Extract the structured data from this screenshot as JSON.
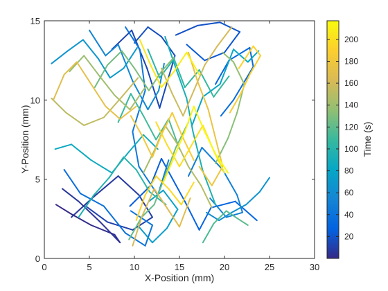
{
  "chart_data": {
    "type": "line",
    "xlabel": "X-Position (mm)",
    "ylabel": "Y-Position (mm)",
    "xlim": [
      0,
      30
    ],
    "ylim": [
      0,
      15
    ],
    "xticks": [
      0,
      5,
      10,
      15,
      20,
      25,
      30
    ],
    "yticks": [
      0,
      5,
      10,
      15
    ],
    "xtick_labels": [
      "0",
      "5",
      "10",
      "15",
      "20",
      "25",
      "30"
    ],
    "ytick_labels": [
      "0",
      "5",
      "10",
      "15"
    ],
    "grid": false,
    "colorbar": {
      "label": "Time (s)",
      "range": [
        0,
        217
      ],
      "ticks": [
        20,
        40,
        60,
        80,
        100,
        120,
        140,
        160,
        180,
        200
      ],
      "tick_labels": [
        "20",
        "40",
        "60",
        "80",
        "100",
        "120",
        "140",
        "160",
        "180",
        "200"
      ],
      "colormap": "parula",
      "colors": [
        "#352a87",
        "#0363e1",
        "#1485d4",
        "#06a7c6",
        "#38b99e",
        "#92bf73",
        "#d9ba56",
        "#fcce2e",
        "#f9fb0e"
      ]
    },
    "series": [
      {
        "time": [
          0,
          6
        ],
        "x": [
          1.3,
          3.0,
          5.2,
          7.8,
          8.4,
          6.2,
          3.8,
          2.0
        ],
        "y": [
          3.4,
          2.8,
          2.1,
          1.5,
          1.0,
          2.3,
          3.6,
          4.4
        ]
      },
      {
        "time": [
          6,
          12
        ],
        "x": [
          3.0,
          5.5,
          8.2,
          10.5,
          12.0,
          9.8,
          7.0,
          4.6
        ],
        "y": [
          2.6,
          3.9,
          5.2,
          4.0,
          2.6,
          1.8,
          2.3,
          3.3
        ]
      },
      {
        "time": [
          12,
          18
        ],
        "x": [
          7.5,
          9.7,
          11.4,
          12.8,
          14.5,
          13.0,
          11.5,
          10.0
        ],
        "y": [
          13.2,
          14.4,
          12.0,
          9.5,
          12.8,
          14.0,
          14.6,
          13.6
        ]
      },
      {
        "time": [
          18,
          24
        ],
        "x": [
          14.6,
          17.0,
          19.5,
          21.7,
          20.0,
          17.8,
          15.8
        ],
        "y": [
          14.1,
          14.7,
          14.9,
          14.3,
          13.0,
          12.5,
          13.5
        ]
      },
      {
        "time": [
          24,
          30
        ],
        "x": [
          9.5,
          11.8,
          13.0,
          15.6,
          17.2,
          18.5,
          21.2,
          23.6
        ],
        "y": [
          3.3,
          4.6,
          6.3,
          3.6,
          1.8,
          3.2,
          3.6,
          2.4
        ]
      },
      {
        "time": [
          30,
          36
        ],
        "x": [
          19.0,
          20.5,
          22.8,
          23.2,
          21.0,
          19.6
        ],
        "y": [
          11.0,
          12.5,
          13.3,
          12.1,
          10.0,
          9.0
        ]
      },
      {
        "time": [
          36,
          42
        ],
        "x": [
          2.2,
          4.0,
          6.6,
          9.0,
          11.2,
          12.0,
          9.6
        ],
        "y": [
          5.6,
          4.1,
          3.3,
          1.6,
          0.8,
          2.1,
          3.0
        ]
      },
      {
        "time": [
          42,
          48
        ],
        "x": [
          9.0,
          10.6,
          11.2,
          9.8,
          10.5,
          12.6,
          13.8
        ],
        "y": [
          14.6,
          13.2,
          10.6,
          8.0,
          5.8,
          4.0,
          6.2
        ]
      },
      {
        "time": [
          48,
          54
        ],
        "x": [
          16.0,
          17.5,
          19.8,
          21.4,
          22.0,
          20.2,
          18.4
        ],
        "y": [
          5.2,
          7.0,
          5.6,
          4.0,
          2.9,
          2.6,
          3.8
        ]
      },
      {
        "time": [
          54,
          60
        ],
        "x": [
          5.0,
          6.8,
          8.2,
          9.8,
          11.5,
          12.7,
          13.3
        ],
        "y": [
          14.4,
          12.8,
          13.5,
          11.2,
          9.4,
          10.6,
          12.3
        ]
      },
      {
        "time": [
          60,
          66
        ],
        "x": [
          18.0,
          19.4,
          20.8,
          22.4,
          23.9,
          25.0
        ],
        "y": [
          2.9,
          2.4,
          2.9,
          3.4,
          4.2,
          5.1
        ]
      },
      {
        "time": [
          66,
          72
        ],
        "x": [
          0.8,
          2.6,
          4.3,
          6.0,
          7.3,
          8.8,
          10.3
        ],
        "y": [
          12.3,
          13.1,
          13.8,
          12.6,
          11.4,
          12.0,
          13.3
        ]
      },
      {
        "time": [
          72,
          78
        ],
        "x": [
          10.5,
          12.0,
          13.6,
          14.8,
          13.2,
          11.6
        ],
        "y": [
          2.0,
          1.0,
          1.9,
          3.1,
          4.3,
          3.6
        ]
      },
      {
        "time": [
          78,
          84
        ],
        "x": [
          16.4,
          17.6,
          19.5,
          21.0,
          22.6,
          23.8
        ],
        "y": [
          8.4,
          10.2,
          11.0,
          13.2,
          12.4,
          13.1
        ]
      },
      {
        "time": [
          84,
          90
        ],
        "x": [
          1.2,
          3.0,
          5.2,
          7.5,
          9.2,
          11.0,
          12.6
        ],
        "y": [
          6.9,
          7.2,
          6.2,
          5.4,
          6.6,
          7.8,
          6.9
        ]
      },
      {
        "time": [
          90,
          96
        ],
        "x": [
          13.4,
          14.6,
          15.8,
          16.5,
          17.6,
          19.0
        ],
        "y": [
          14.0,
          12.0,
          10.1,
          8.0,
          5.5,
          3.4
        ]
      },
      {
        "time": [
          96,
          102
        ],
        "x": [
          3.8,
          5.5,
          7.2,
          8.8,
          10.2,
          11.7,
          13.5
        ],
        "y": [
          2.6,
          4.0,
          5.1,
          6.4,
          5.6,
          4.2,
          3.4
        ]
      },
      {
        "time": [
          102,
          108
        ],
        "x": [
          11.5,
          12.8,
          14.4,
          15.6,
          17.2,
          18.8,
          20.5
        ],
        "y": [
          13.2,
          11.4,
          12.6,
          10.8,
          11.9,
          10.2,
          11.5
        ]
      },
      {
        "time": [
          108,
          114
        ],
        "x": [
          8.2,
          9.6,
          11.0,
          12.4,
          13.8,
          15.0
        ],
        "y": [
          8.6,
          10.4,
          9.0,
          7.5,
          8.8,
          6.9
        ]
      },
      {
        "time": [
          114,
          120
        ],
        "x": [
          17.6,
          18.8,
          20.2,
          21.5,
          22.6
        ],
        "y": [
          1.0,
          2.2,
          3.0,
          2.5,
          2.1
        ]
      },
      {
        "time": [
          120,
          126
        ],
        "x": [
          9.4,
          10.8,
          12.2,
          13.4,
          14.6,
          16.0
        ],
        "y": [
          1.2,
          2.6,
          3.4,
          5.2,
          7.0,
          8.6
        ]
      },
      {
        "time": [
          126,
          132
        ],
        "x": [
          5.6,
          7.0,
          8.6,
          10.0,
          11.6,
          13.0,
          14.4
        ],
        "y": [
          10.8,
          12.2,
          13.1,
          12.0,
          10.6,
          11.8,
          12.7
        ]
      },
      {
        "time": [
          132,
          138
        ],
        "x": [
          19.0,
          20.4,
          21.4,
          22.2,
          21.0,
          19.8
        ],
        "y": [
          6.0,
          7.6,
          9.2,
          11.0,
          12.4,
          13.0
        ]
      },
      {
        "time": [
          138,
          144
        ],
        "x": [
          2.8,
          4.4,
          6.0,
          7.8,
          9.5,
          11.2
        ],
        "y": [
          11.8,
          12.8,
          11.6,
          10.3,
          9.4,
          10.8
        ]
      },
      {
        "time": [
          144,
          150
        ],
        "x": [
          11.0,
          12.2,
          13.4,
          14.8,
          16.0,
          17.4,
          18.6
        ],
        "y": [
          5.4,
          6.8,
          8.4,
          7.2,
          5.8,
          4.6,
          3.2
        ]
      },
      {
        "time": [
          150,
          156
        ],
        "x": [
          0.8,
          2.4,
          4.4,
          6.6,
          8.6,
          10.4
        ],
        "y": [
          10.1,
          9.2,
          8.4,
          8.9,
          10.2,
          11.4
        ]
      },
      {
        "time": [
          156,
          162
        ],
        "x": [
          13.0,
          14.2,
          15.4,
          16.6,
          17.8,
          19.2,
          20.8
        ],
        "y": [
          12.0,
          10.4,
          9.0,
          10.6,
          12.2,
          13.4,
          14.6
        ]
      },
      {
        "time": [
          162,
          168
        ],
        "x": [
          9.8,
          10.8,
          12.2,
          13.6,
          15.0,
          16.2
        ],
        "y": [
          0.8,
          2.6,
          4.4,
          3.2,
          2.0,
          3.8
        ]
      },
      {
        "time": [
          168,
          174
        ],
        "x": [
          1.0,
          2.2,
          3.6,
          5.2,
          6.8,
          8.4,
          10.2
        ],
        "y": [
          10.0,
          11.6,
          12.4,
          11.0,
          9.6,
          8.8,
          9.6
        ]
      },
      {
        "time": [
          174,
          180
        ],
        "x": [
          16.0,
          17.0,
          18.2,
          19.0,
          19.8,
          18.6,
          17.2
        ],
        "y": [
          13.0,
          11.2,
          9.4,
          7.6,
          5.8,
          4.6,
          5.8
        ]
      },
      {
        "time": [
          180,
          186
        ],
        "x": [
          9.6,
          10.8,
          12.0,
          13.0,
          14.2,
          15.4,
          16.6
        ],
        "y": [
          9.0,
          7.8,
          6.4,
          7.8,
          9.2,
          7.6,
          6.2
        ]
      },
      {
        "time": [
          186,
          192
        ],
        "x": [
          20.6,
          21.8,
          22.8,
          24.0,
          23.2,
          21.6
        ],
        "y": [
          9.2,
          10.4,
          11.6,
          12.8,
          13.4,
          12.0
        ]
      },
      {
        "time": [
          192,
          198
        ],
        "x": [
          10.2,
          11.2,
          12.4,
          13.8,
          15.2,
          16.6
        ],
        "y": [
          2.4,
          4.0,
          5.2,
          4.4,
          3.4,
          4.8
        ]
      },
      {
        "time": [
          198,
          204
        ],
        "x": [
          12.4,
          13.6,
          15.0,
          16.2,
          17.6,
          18.8,
          20.0
        ],
        "y": [
          8.6,
          7.2,
          5.8,
          7.0,
          8.4,
          6.8,
          5.4
        ]
      },
      {
        "time": [
          204,
          210
        ],
        "x": [
          10.6,
          11.8,
          13.0,
          14.4,
          15.8,
          17.2
        ],
        "y": [
          13.8,
          12.2,
          10.8,
          11.8,
          13.0,
          11.6
        ]
      },
      {
        "time": [
          210,
          217
        ],
        "x": [
          13.2,
          14.4,
          15.6,
          16.6,
          17.8,
          19.0,
          20.4
        ],
        "y": [
          4.8,
          6.4,
          8.0,
          9.6,
          8.0,
          6.6,
          5.4
        ]
      }
    ]
  }
}
